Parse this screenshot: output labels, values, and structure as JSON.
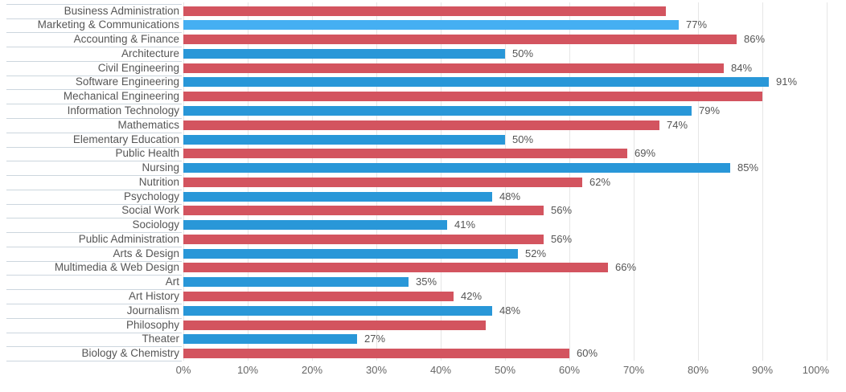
{
  "chart": {
    "colors": {
      "bar_red": "#d3545f",
      "bar_blue": "#2997d8",
      "bar_blue_highlight": "#45aff2",
      "gridline": "#e6e6e6",
      "category_row_line": "#ccd6de",
      "category_text": "#565656",
      "value_text": "#555555",
      "axis_text": "#666666"
    },
    "x_axis": {
      "ticks": [
        "0%",
        "10%",
        "20%",
        "30%",
        "40%",
        "50%",
        "60%",
        "70%",
        "80%",
        "90%",
        "100%"
      ],
      "min": 0,
      "max": 100,
      "step": 10
    }
  },
  "chart_data": {
    "type": "bar",
    "orientation": "horizontal",
    "title": "",
    "xlabel": "",
    "ylabel": "",
    "xlim": [
      0,
      100
    ],
    "grid": "vertical",
    "legend": "none",
    "categories": [
      "Business Administration",
      "Marketing & Communications",
      "Accounting & Finance",
      "Architecture",
      "Civil Engineering",
      "Software Engineering",
      "Mechanical Engineering",
      "Information Technology",
      "Mathematics",
      "Elementary Education",
      "Public Health",
      "Nursing",
      "Nutrition",
      "Psychology",
      "Social Work",
      "Sociology",
      "Public Administration",
      "Arts & Design",
      "Multimedia & Web Design",
      "Art",
      "Art History",
      "Journalism",
      "Philosophy",
      "Theater",
      "Biology & Chemistry"
    ],
    "values": [
      75,
      77,
      86,
      50,
      84,
      91,
      90,
      79,
      74,
      50,
      69,
      85,
      62,
      48,
      56,
      41,
      56,
      52,
      66,
      35,
      42,
      48,
      47,
      27,
      60
    ],
    "rows": [
      {
        "category": "Business Administration",
        "value": 75,
        "color": "red",
        "value_label": ""
      },
      {
        "category": "Marketing & Communications",
        "value": 77,
        "color": "blue-hover",
        "value_label": "77%"
      },
      {
        "category": "Accounting & Finance",
        "value": 86,
        "color": "red",
        "value_label": "86%"
      },
      {
        "category": "Architecture",
        "value": 50,
        "color": "blue",
        "value_label": "50%"
      },
      {
        "category": "Civil Engineering",
        "value": 84,
        "color": "red",
        "value_label": "84%"
      },
      {
        "category": "Software Engineering",
        "value": 91,
        "color": "blue",
        "value_label": "91%"
      },
      {
        "category": "Mechanical Engineering",
        "value": 90,
        "color": "red",
        "value_label": ""
      },
      {
        "category": "Information Technology",
        "value": 79,
        "color": "blue",
        "value_label": "79%"
      },
      {
        "category": "Mathematics",
        "value": 74,
        "color": "red",
        "value_label": "74%"
      },
      {
        "category": "Elementary Education",
        "value": 50,
        "color": "blue",
        "value_label": "50%"
      },
      {
        "category": "Public Health",
        "value": 69,
        "color": "red",
        "value_label": "69%"
      },
      {
        "category": "Nursing",
        "value": 85,
        "color": "blue",
        "value_label": "85%"
      },
      {
        "category": "Nutrition",
        "value": 62,
        "color": "red",
        "value_label": "62%"
      },
      {
        "category": "Psychology",
        "value": 48,
        "color": "blue",
        "value_label": "48%"
      },
      {
        "category": "Social Work",
        "value": 56,
        "color": "red",
        "value_label": "56%"
      },
      {
        "category": "Sociology",
        "value": 41,
        "color": "blue",
        "value_label": "41%"
      },
      {
        "category": "Public Administration",
        "value": 56,
        "color": "red",
        "value_label": "56%"
      },
      {
        "category": "Arts & Design",
        "value": 52,
        "color": "blue",
        "value_label": "52%"
      },
      {
        "category": "Multimedia & Web Design",
        "value": 66,
        "color": "red",
        "value_label": "66%"
      },
      {
        "category": "Art",
        "value": 35,
        "color": "blue",
        "value_label": "35%"
      },
      {
        "category": "Art History",
        "value": 42,
        "color": "red",
        "value_label": "42%"
      },
      {
        "category": "Journalism",
        "value": 48,
        "color": "blue",
        "value_label": "48%"
      },
      {
        "category": "Philosophy",
        "value": 47,
        "color": "red",
        "value_label": ""
      },
      {
        "category": "Theater",
        "value": 27,
        "color": "blue",
        "value_label": "27%"
      },
      {
        "category": "Biology & Chemistry",
        "value": 60,
        "color": "red",
        "value_label": "60%"
      }
    ],
    "highlighted_category": "Marketing & Communications"
  }
}
